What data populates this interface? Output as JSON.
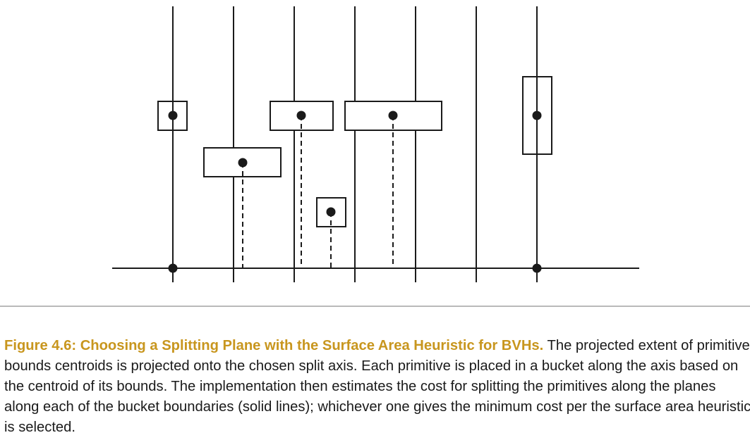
{
  "figure": {
    "caption_title": "Figure 4.6: Choosing a Splitting Plane with the Surface Area Heuristic for BVHs.",
    "caption_body": " The projected extent of primitive bounds centroids is projected onto the chosen split axis. Each primitive is placed in a bucket along the axis based on the centroid of its bounds. The implementation then estimates the cost for splitting the primitives along the planes along each of the bucket boundaries (solid lines); whichever one gives the minimum cost per the surface area heuristic is selected."
  },
  "colors": {
    "caption_title": "#c8961e",
    "line": "#1a1a1a",
    "rule": "#b9b9b9"
  }
}
